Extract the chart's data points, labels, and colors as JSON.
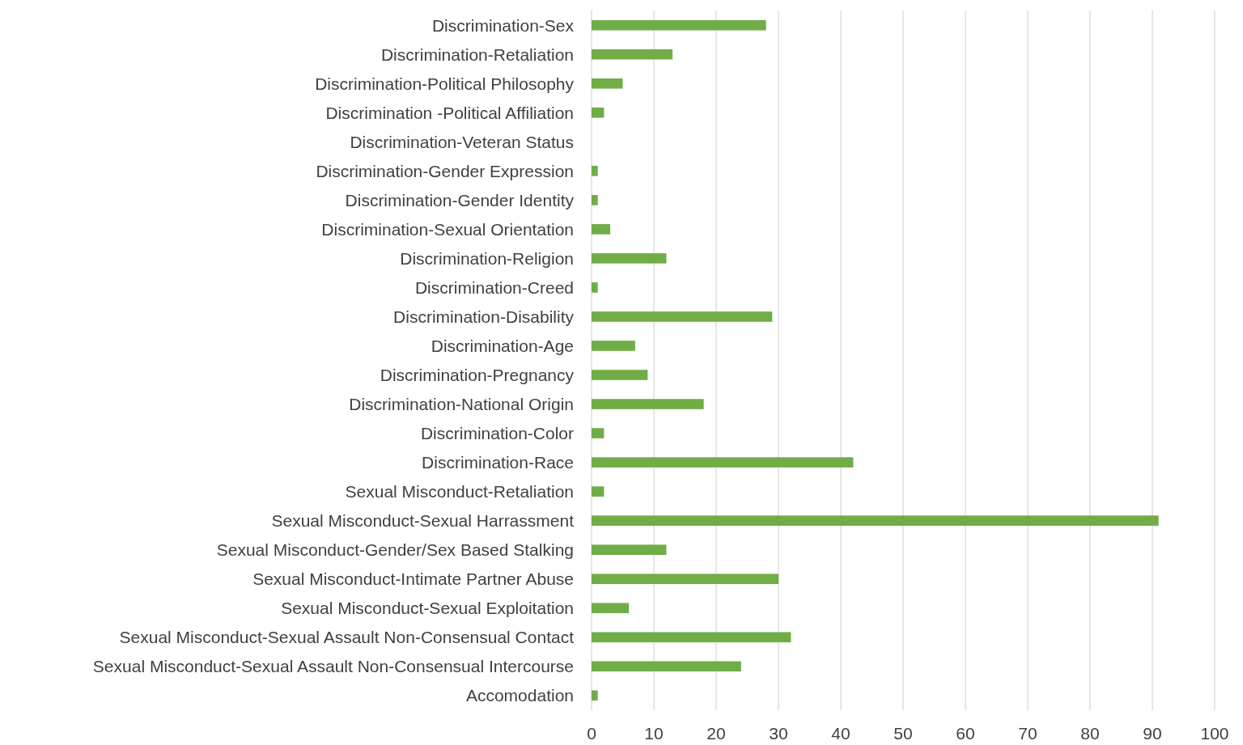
{
  "chart_data": {
    "type": "bar",
    "orientation": "horizontal",
    "categories": [
      "Discrimination-Sex",
      "Discrimination-Retaliation",
      "Discrimination-Political Philosophy",
      "Discrimination -Political Affiliation",
      "Discrimination-Veteran Status",
      "Discrimination-Gender Expression",
      "Discrimination-Gender Identity",
      "Discrimination-Sexual Orientation",
      "Discrimination-Religion",
      "Discrimination-Creed",
      "Discrimination-Disability",
      "Discrimination-Age",
      "Discrimination-Pregnancy",
      "Discrimination-National Origin",
      "Discrimination-Color",
      "Discrimination-Race",
      "Sexual Misconduct-Retaliation",
      "Sexual Misconduct-Sexual Harrassment",
      "Sexual Misconduct-Gender/Sex Based Stalking",
      "Sexual Misconduct-Intimate Partner Abuse",
      "Sexual Misconduct-Sexual Exploitation",
      "Sexual Misconduct-Sexual Assault Non-Consensual Contact",
      "Sexual Misconduct-Sexual Assault Non-Consensual Intercourse",
      "Accomodation"
    ],
    "values": [
      28,
      13,
      5,
      2,
      0,
      1,
      1,
      3,
      12,
      1,
      29,
      7,
      9,
      18,
      2,
      42,
      2,
      91,
      12,
      30,
      6,
      32,
      24,
      1
    ],
    "color": "#70ad47",
    "xlim": [
      0,
      100
    ],
    "xticks": [
      0,
      10,
      20,
      30,
      40,
      50,
      60,
      70,
      80,
      90,
      100
    ],
    "grid": "x"
  }
}
